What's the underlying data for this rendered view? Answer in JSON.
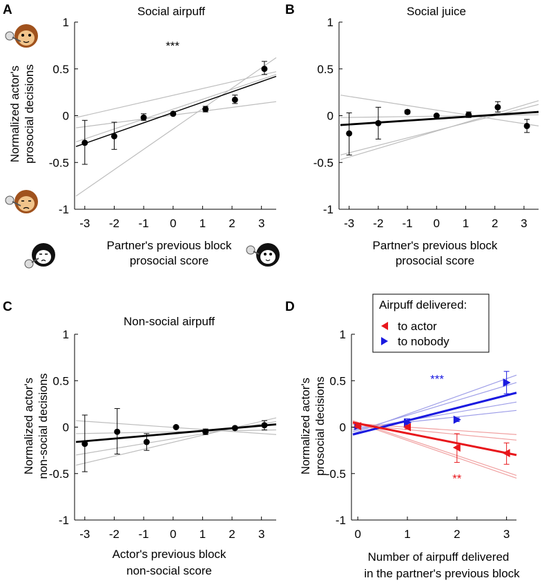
{
  "figure": {
    "panels_meta": "4-panel scatter with regression",
    "colors": {
      "ink": "#000000",
      "grey_line": "#bdbdbd",
      "red": "#e8161b",
      "blue": "#1a1ae0",
      "light_red": "#f0a0a0",
      "light_blue": "#9d9de8",
      "monkey_fur": "#a0521d",
      "monkey_face": "#f1c48b"
    },
    "icons": [
      "monkey-face-icon",
      "monkey-airpuff-icon",
      "dark-monkey-airpuff-icon"
    ]
  },
  "chart_data": [
    {
      "id": "A",
      "type": "scatter",
      "panel_label": "A",
      "title": "Social airpuff",
      "ylabel": [
        "Normalized actor's",
        "prosocial decisions"
      ],
      "xlabel": [
        "Partner's previous block",
        "prosocial score"
      ],
      "xlim": [
        -3.3,
        3.5
      ],
      "ylim": [
        -1,
        1
      ],
      "xticks": [
        "-3",
        "-2",
        "-1",
        "0",
        "1",
        "2",
        "3"
      ],
      "yticks": [
        "-1",
        "-0.5",
        "0",
        "0.5",
        "1"
      ],
      "significance": "***",
      "points": [
        {
          "x": -3.0,
          "y": -0.29,
          "lo": -0.52,
          "hi": -0.05
        },
        {
          "x": -2.0,
          "y": -0.22,
          "lo": -0.36,
          "hi": -0.07
        },
        {
          "x": -1.0,
          "y": -0.02,
          "lo": -0.05,
          "hi": 0.02
        },
        {
          "x": 0.0,
          "y": 0.02,
          "lo": 0.01,
          "hi": 0.03
        },
        {
          "x": 1.1,
          "y": 0.07,
          "lo": 0.04,
          "hi": 0.1
        },
        {
          "x": 2.1,
          "y": 0.17,
          "lo": 0.13,
          "hi": 0.22
        },
        {
          "x": 3.1,
          "y": 0.5,
          "lo": 0.44,
          "hi": 0.58
        }
      ],
      "fit": {
        "x0": -3.3,
        "y0": -0.33,
        "x1": 3.5,
        "y1": 0.42
      },
      "bootstrap_fits": [
        {
          "x0": -3.3,
          "y0": -0.86,
          "x1": 3.5,
          "y1": 0.62
        },
        {
          "x0": -3.3,
          "y0": -0.13,
          "x1": 3.5,
          "y1": 0.15
        },
        {
          "x0": -3.3,
          "y0": -0.02,
          "x1": 3.5,
          "y1": 0.47
        },
        {
          "x0": -3.3,
          "y0": -0.28,
          "x1": 3.5,
          "y1": 0.44
        }
      ]
    },
    {
      "id": "B",
      "type": "scatter",
      "panel_label": "B",
      "title": "Social juice",
      "ylabel": [],
      "xlabel": [
        "Partner's previous block",
        "prosocial score"
      ],
      "xlim": [
        -3.3,
        3.5
      ],
      "ylim": [
        -1,
        1
      ],
      "xticks": [
        "-3",
        "-2",
        "-1",
        "0",
        "1",
        "2",
        "3"
      ],
      "yticks": [
        "-1",
        "-0.5",
        "0",
        "0.5",
        "1"
      ],
      "significance": "",
      "points": [
        {
          "x": -3.0,
          "y": -0.19,
          "lo": -0.42,
          "hi": 0.03
        },
        {
          "x": -2.0,
          "y": -0.08,
          "lo": -0.25,
          "hi": 0.09
        },
        {
          "x": -1.0,
          "y": 0.04,
          "lo": 0.02,
          "hi": 0.06
        },
        {
          "x": 0.0,
          "y": 0.0,
          "lo": -0.01,
          "hi": 0.01
        },
        {
          "x": 1.1,
          "y": 0.01,
          "lo": -0.02,
          "hi": 0.04
        },
        {
          "x": 2.1,
          "y": 0.09,
          "lo": 0.04,
          "hi": 0.15
        },
        {
          "x": 3.1,
          "y": -0.11,
          "lo": -0.18,
          "hi": -0.04
        }
      ],
      "fit": {
        "x0": -3.3,
        "y0": -0.1,
        "x1": 3.5,
        "y1": 0.04
      },
      "bootstrap_fits": [
        {
          "x0": -3.3,
          "y0": 0.22,
          "x1": 3.5,
          "y1": -0.11
        },
        {
          "x0": -3.3,
          "y0": -0.47,
          "x1": 3.5,
          "y1": 0.16
        },
        {
          "x0": -3.3,
          "y0": -0.42,
          "x1": 3.5,
          "y1": 0.12
        },
        {
          "x0": -3.3,
          "y0": -0.02,
          "x1": 3.5,
          "y1": 0.01
        }
      ]
    },
    {
      "id": "C",
      "type": "scatter",
      "panel_label": "C",
      "title": "Non-social airpuff",
      "ylabel": [
        "Normalized actor's",
        "non-social decisions"
      ],
      "xlabel": [
        "Actor's previous block",
        "non-social score"
      ],
      "xlim": [
        -3.3,
        3.5
      ],
      "ylim": [
        -1,
        1
      ],
      "xticks": [
        "-3",
        "-2",
        "-1",
        "0",
        "1",
        "2",
        "3"
      ],
      "yticks": [
        "-1",
        "-0.5",
        "0",
        "0.5",
        "1"
      ],
      "significance": "",
      "points": [
        {
          "x": -3.0,
          "y": -0.18,
          "lo": -0.48,
          "hi": 0.13
        },
        {
          "x": -1.9,
          "y": -0.05,
          "lo": -0.29,
          "hi": 0.2
        },
        {
          "x": -0.9,
          "y": -0.16,
          "lo": -0.25,
          "hi": -0.07
        },
        {
          "x": 0.1,
          "y": 0.0,
          "lo": -0.01,
          "hi": 0.01
        },
        {
          "x": 1.1,
          "y": -0.05,
          "lo": -0.08,
          "hi": -0.02
        },
        {
          "x": 2.1,
          "y": -0.01,
          "lo": -0.02,
          "hi": 0.0
        },
        {
          "x": 3.1,
          "y": 0.02,
          "lo": -0.03,
          "hi": 0.07
        }
      ],
      "fit": {
        "x0": -3.3,
        "y0": -0.16,
        "x1": 3.5,
        "y1": 0.03
      },
      "bootstrap_fits": [
        {
          "x0": -3.3,
          "y0": 0.07,
          "x1": 3.5,
          "y1": -0.08
        },
        {
          "x0": -3.3,
          "y0": -0.41,
          "x1": 3.5,
          "y1": 0.1
        },
        {
          "x0": -3.3,
          "y0": -0.3,
          "x1": 3.5,
          "y1": 0.06
        },
        {
          "x0": -3.3,
          "y0": -0.07,
          "x1": 3.5,
          "y1": -0.03
        }
      ]
    },
    {
      "id": "D",
      "type": "scatter",
      "panel_label": "D",
      "title": "",
      "ylabel": [
        "Normalized actor's",
        "prosocial decisions"
      ],
      "xlabel": [
        "Number of airpuff delivered",
        "in the partner's previous block"
      ],
      "xlim": [
        -0.1,
        3.2
      ],
      "ylim": [
        -1,
        1
      ],
      "xticks": [
        "0",
        "1",
        "2",
        "3"
      ],
      "yticks": [
        "-1",
        "-0.5",
        "0",
        "0.5",
        "1"
      ],
      "legend": {
        "title": "Airpuff delivered:",
        "position": "top-left",
        "entries": [
          {
            "label": "to actor",
            "color": "#e8161b",
            "marker": "left-triangle"
          },
          {
            "label": "to nobody",
            "color": "#1a1ae0",
            "marker": "right-triangle"
          }
        ]
      },
      "series": [
        {
          "name": "to nobody",
          "color": "#1a1ae0",
          "light": "#9d9de8",
          "marker": "right-triangle",
          "significance": "***",
          "sig_x": 1.6,
          "sig_y": 0.52,
          "points": [
            {
              "x": 0.0,
              "y": 0.01,
              "lo": -0.01,
              "hi": 0.03
            },
            {
              "x": 1.0,
              "y": 0.05,
              "lo": 0.01,
              "hi": 0.09
            },
            {
              "x": 2.0,
              "y": 0.08,
              "lo": 0.06,
              "hi": 0.1
            },
            {
              "x": 3.0,
              "y": 0.48,
              "lo": 0.36,
              "hi": 0.6
            }
          ],
          "fit": {
            "x0": -0.1,
            "y0": -0.08,
            "x1": 3.2,
            "y1": 0.37
          },
          "bootstrap_fits": [
            {
              "x0": -0.1,
              "y0": -0.07,
              "x1": 3.2,
              "y1": 0.56
            },
            {
              "x0": -0.1,
              "y0": -0.05,
              "x1": 3.2,
              "y1": 0.48
            },
            {
              "x0": -0.1,
              "y0": -0.03,
              "x1": 3.2,
              "y1": 0.27
            },
            {
              "x0": -0.1,
              "y0": -0.01,
              "x1": 3.2,
              "y1": 0.18
            }
          ]
        },
        {
          "name": "to actor",
          "color": "#e8161b",
          "light": "#f0a0a0",
          "marker": "left-triangle",
          "significance": "**",
          "sig_x": 2.0,
          "sig_y": -0.55,
          "points": [
            {
              "x": 0.0,
              "y": 0.01,
              "lo": -0.01,
              "hi": 0.03
            },
            {
              "x": 1.0,
              "y": 0.0,
              "lo": -0.02,
              "hi": 0.02
            },
            {
              "x": 2.0,
              "y": -0.22,
              "lo": -0.38,
              "hi": -0.07
            },
            {
              "x": 3.0,
              "y": -0.28,
              "lo": -0.4,
              "hi": -0.17
            }
          ],
          "fit": {
            "x0": -0.1,
            "y0": 0.05,
            "x1": 3.2,
            "y1": -0.3
          },
          "bootstrap_fits": [
            {
              "x0": -0.1,
              "y0": 0.06,
              "x1": 3.2,
              "y1": -0.55
            },
            {
              "x0": -0.1,
              "y0": 0.07,
              "x1": 3.2,
              "y1": -0.52
            },
            {
              "x0": -0.1,
              "y0": 0.04,
              "x1": 3.2,
              "y1": -0.08
            },
            {
              "x0": -0.1,
              "y0": 0.03,
              "x1": 3.2,
              "y1": -0.14
            }
          ]
        }
      ]
    }
  ]
}
